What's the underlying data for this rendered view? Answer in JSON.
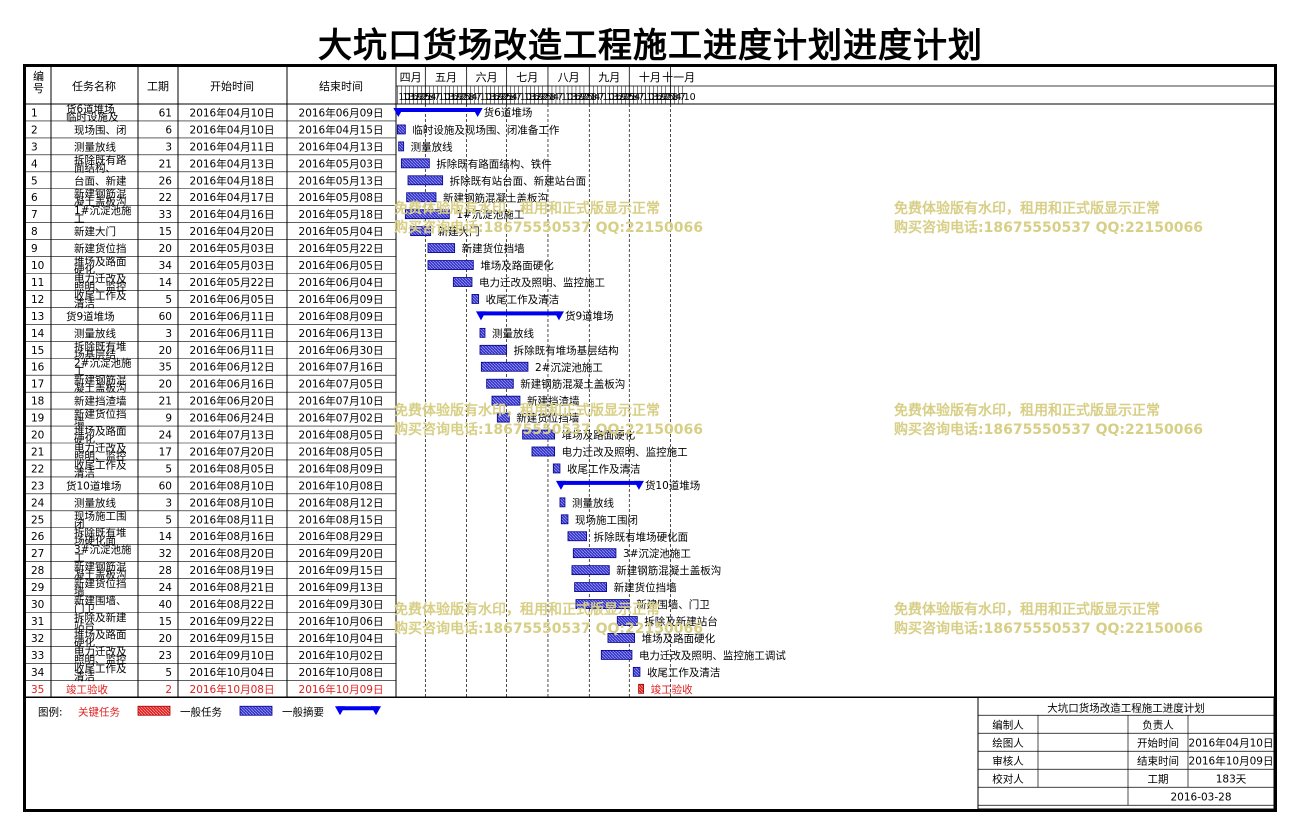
{
  "title": "大坑口货场改造工程施工进度计划进度计划",
  "headers": {
    "id": "编号",
    "name": "任务名称",
    "duration": "工期",
    "start": "开始时间",
    "end": "结束时间"
  },
  "months": [
    {
      "label": "四月",
      "days": [
        "10",
        "13",
        "16",
        "19",
        "22",
        "25",
        "28"
      ]
    },
    {
      "label": "五月",
      "days": [
        "1",
        "4",
        "7",
        "10",
        "13",
        "16",
        "19",
        "22",
        "25",
        "28"
      ]
    },
    {
      "label": "六月",
      "days": [
        "1",
        "4",
        "7",
        "10",
        "13",
        "16",
        "19",
        "22",
        "25",
        "28"
      ]
    },
    {
      "label": "七月",
      "days": [
        "1",
        "4",
        "7",
        "10",
        "13",
        "16",
        "19",
        "22",
        "25",
        "28"
      ]
    },
    {
      "label": "八月",
      "days": [
        "1",
        "4",
        "7",
        "10",
        "13",
        "16",
        "19",
        "22",
        "25",
        "28"
      ]
    },
    {
      "label": "九月",
      "days": [
        "1",
        "4",
        "7",
        "10",
        "13",
        "16",
        "19",
        "22",
        "25",
        "28"
      ]
    },
    {
      "label": "十月",
      "days": [
        "1",
        "4",
        "7",
        "10",
        "13",
        "16",
        "19",
        "22",
        "25",
        "28"
      ]
    },
    {
      "label": "十一月",
      "days": [
        "1",
        "4",
        "7",
        "10"
      ]
    }
  ],
  "tasks": [
    {
      "id": "1",
      "name": "货6道堆场",
      "name2": "临时设施及",
      "dur": "61",
      "start": "2016年04月10日",
      "end": "2016年06月09日",
      "bar": "货6道堆场",
      "type": "summary"
    },
    {
      "id": "2",
      "name": "现场围、闭",
      "dur": "6",
      "start": "2016年04月10日",
      "end": "2016年04月15日",
      "bar": "临时设施及现场围、闭准备工作",
      "type": "normal"
    },
    {
      "id": "3",
      "name": "测量放线",
      "dur": "3",
      "start": "2016年04月11日",
      "end": "2016年04月13日",
      "bar": "测量放线",
      "type": "normal"
    },
    {
      "id": "4",
      "name": "拆除既有路",
      "name2": "面结构、",
      "dur": "21",
      "start": "2016年04月13日",
      "end": "2016年05月03日",
      "bar": "拆除既有路面结构、铁件",
      "type": "normal"
    },
    {
      "id": "5",
      "name": "台面、新建",
      "dur": "26",
      "start": "2016年04月18日",
      "end": "2016年05月13日",
      "bar": "拆除既有站台面、新建站台面",
      "type": "normal"
    },
    {
      "id": "6",
      "name": "新建钢筋混",
      "name2": "凝土盖板沟",
      "dur": "22",
      "start": "2016年04月17日",
      "end": "2016年05月08日",
      "bar": "新建钢筋混凝土盖板沟",
      "type": "normal"
    },
    {
      "id": "7",
      "name": "1#沉淀池施",
      "name2": "工",
      "dur": "33",
      "start": "2016年04月16日",
      "end": "2016年05月18日",
      "bar": "1#沉淀池施工",
      "type": "normal"
    },
    {
      "id": "8",
      "name": "新建大门",
      "dur": "15",
      "start": "2016年04月20日",
      "end": "2016年05月04日",
      "bar": "新建大门",
      "type": "normal"
    },
    {
      "id": "9",
      "name": "新建货位挡",
      "dur": "20",
      "start": "2016年05月03日",
      "end": "2016年05月22日",
      "bar": "新建货位挡墙",
      "type": "normal"
    },
    {
      "id": "10",
      "name": "堆场及路面",
      "name2": "硬化",
      "dur": "34",
      "start": "2016年05月03日",
      "end": "2016年06月05日",
      "bar": "堆场及路面硬化",
      "type": "normal"
    },
    {
      "id": "11",
      "name": "电力迁改及",
      "name2": "照明、监控",
      "dur": "14",
      "start": "2016年05月22日",
      "end": "2016年06月04日",
      "bar": "电力迁改及照明、监控施工",
      "type": "normal"
    },
    {
      "id": "12",
      "name": "收尾工作及",
      "name2": "清洁",
      "dur": "5",
      "start": "2016年06月05日",
      "end": "2016年06月09日",
      "bar": "收尾工作及清洁",
      "type": "normal"
    },
    {
      "id": "13",
      "name": "货9道堆场",
      "dur": "60",
      "start": "2016年06月11日",
      "end": "2016年08月09日",
      "bar": "货9道堆场",
      "type": "summary"
    },
    {
      "id": "14",
      "name": "测量放线",
      "dur": "3",
      "start": "2016年06月11日",
      "end": "2016年06月13日",
      "bar": "测量放线",
      "type": "normal"
    },
    {
      "id": "15",
      "name": "拆除既有堆",
      "name2": "场基层结",
      "dur": "20",
      "start": "2016年06月11日",
      "end": "2016年06月30日",
      "bar": "拆除既有堆场基层结构",
      "type": "normal"
    },
    {
      "id": "16",
      "name": "2#沉淀池施",
      "name2": "工",
      "dur": "35",
      "start": "2016年06月12日",
      "end": "2016年07月16日",
      "bar": "2#沉淀池施工",
      "type": "normal"
    },
    {
      "id": "17",
      "name": "新建钢筋混",
      "name2": "凝土盖板沟",
      "dur": "20",
      "start": "2016年06月16日",
      "end": "2016年07月05日",
      "bar": "新建钢筋混凝土盖板沟",
      "type": "normal"
    },
    {
      "id": "18",
      "name": "新建挡渣墙",
      "dur": "21",
      "start": "2016年06月20日",
      "end": "2016年07月10日",
      "bar": "新建挡渣墙",
      "type": "normal"
    },
    {
      "id": "19",
      "name": "新建货位挡",
      "name2": "墙",
      "dur": "9",
      "start": "2016年06月24日",
      "end": "2016年07月02日",
      "bar": "新建货位挡墙",
      "type": "normal"
    },
    {
      "id": "20",
      "name": "堆场及路面",
      "name2": "硬化",
      "dur": "24",
      "start": "2016年07月13日",
      "end": "2016年08月05日",
      "bar": "堆场及路面硬化",
      "type": "normal"
    },
    {
      "id": "21",
      "name": "电力迁改及",
      "name2": "照明、监控",
      "dur": "17",
      "start": "2016年07月20日",
      "end": "2016年08月05日",
      "bar": "电力迁改及照明、监控施工",
      "type": "normal"
    },
    {
      "id": "22",
      "name": "收尾工作及",
      "name2": "清洁",
      "dur": "5",
      "start": "2016年08月05日",
      "end": "2016年08月09日",
      "bar": "收尾工作及清洁",
      "type": "normal"
    },
    {
      "id": "23",
      "name": "货10道堆场",
      "dur": "60",
      "start": "2016年08月10日",
      "end": "2016年10月08日",
      "bar": "货10道堆场",
      "type": "summary"
    },
    {
      "id": "24",
      "name": "测量放线",
      "dur": "3",
      "start": "2016年08月10日",
      "end": "2016年08月12日",
      "bar": "测量放线",
      "type": "normal"
    },
    {
      "id": "25",
      "name": "现场施工围",
      "name2": "闭",
      "dur": "5",
      "start": "2016年08月11日",
      "end": "2016年08月15日",
      "bar": "现场施工围闭",
      "type": "normal"
    },
    {
      "id": "26",
      "name": "拆除既有堆",
      "name2": "场硬化面",
      "dur": "14",
      "start": "2016年08月16日",
      "end": "2016年08月29日",
      "bar": "拆除既有堆场硬化面",
      "type": "normal"
    },
    {
      "id": "27",
      "name": "3#沉淀池施",
      "name2": "工",
      "dur": "32",
      "start": "2016年08月20日",
      "end": "2016年09月20日",
      "bar": "3#沉淀池施工",
      "type": "normal"
    },
    {
      "id": "28",
      "name": "新建钢筋混",
      "name2": "凝土盖板沟",
      "dur": "28",
      "start": "2016年08月19日",
      "end": "2016年09月15日",
      "bar": "新建钢筋混凝土盖板沟",
      "type": "normal"
    },
    {
      "id": "29",
      "name": "新建货位挡",
      "name2": "墙",
      "dur": "24",
      "start": "2016年08月21日",
      "end": "2016年09月13日",
      "bar": "新建货位挡墙",
      "type": "normal"
    },
    {
      "id": "30",
      "name": "新建围墙、",
      "name2": "门卫",
      "dur": "40",
      "start": "2016年08月22日",
      "end": "2016年09月30日",
      "bar": "新建围墙、门卫",
      "type": "normal"
    },
    {
      "id": "31",
      "name": "拆除及新建",
      "name2": "站台",
      "dur": "15",
      "start": "2016年09月22日",
      "end": "2016年10月06日",
      "bar": "拆除及新建站台",
      "type": "normal"
    },
    {
      "id": "32",
      "name": "堆场及路面",
      "name2": "硬化",
      "dur": "20",
      "start": "2016年09月15日",
      "end": "2016年10月04日",
      "bar": "堆场及路面硬化",
      "type": "normal"
    },
    {
      "id": "33",
      "name": "电力迁改及",
      "name2": "照明、监控",
      "dur": "23",
      "start": "2016年09月10日",
      "end": "2016年10月02日",
      "bar": "电力迁改及照明、监控施工调试",
      "type": "normal"
    },
    {
      "id": "34",
      "name": "收尾工作及",
      "name2": "清洁",
      "dur": "5",
      "start": "2016年10月04日",
      "end": "2016年10月08日",
      "bar": "收尾工作及清洁",
      "type": "normal"
    },
    {
      "id": "35",
      "name": "竣工验收",
      "dur": "2",
      "start": "2016年10月08日",
      "end": "2016年10月09日",
      "bar": "竣工验收",
      "type": "critical"
    }
  ],
  "watermark": {
    "line1": "免费体验版有水印，租用和正式版显示正常",
    "line2": "购买咨询电话:18675550537 QQ:22150066"
  },
  "legend": {
    "label": "图例:",
    "critical": "关键任务",
    "normal": "一般任务",
    "summary": "一般摘要"
  },
  "info": {
    "title": "大坑口货场改造工程施工进度计划",
    "editor_label": "编制人",
    "editor_value": "",
    "owner_label": "负责人",
    "owner_value": "",
    "drawer_label": "绘图人",
    "drawer_value": "",
    "start_label": "开始时间",
    "start_value": "2016年04月10日",
    "reviewer_label": "审核人",
    "reviewer_value": "",
    "end_label": "结束时间",
    "end_value": "2016年10月09日",
    "checker_label": "校对人",
    "checker_value": "",
    "duration_label": "工期",
    "duration_value": "183天",
    "date": "2016-03-28"
  },
  "colors": {
    "normal_bar": "#3333cc",
    "summary_bar": "#0000ee",
    "critical": "#e02020",
    "watermark": "#d8cf86",
    "grid": "#000000"
  }
}
